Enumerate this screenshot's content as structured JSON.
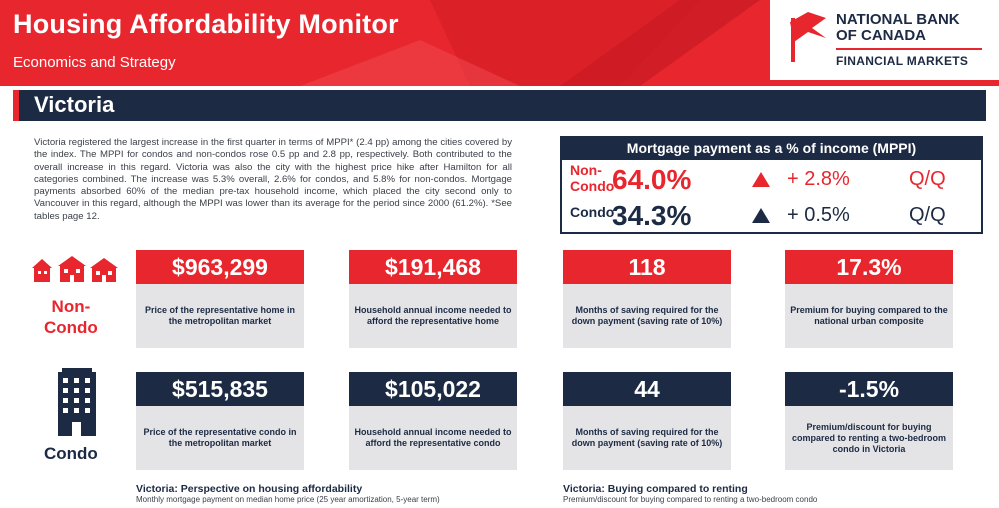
{
  "header": {
    "title": "Housing Affordability Monitor",
    "subtitle": "Economics and Strategy",
    "logo_line1": "NATIONAL BANK",
    "logo_line2": "OF CANADA",
    "logo_line3": "FINANCIAL MARKETS"
  },
  "city": "Victoria",
  "body_text": "Victoria registered the largest increase in the first quarter in terms of MPPI* (2.4 pp) among the cities covered by the index. The MPPI for condos and non-condos rose 0.5 pp and 2.8 pp, respectively. Both contributed to the overall increase in this regard. Victoria was also the city with the highest price hike after Hamilton for all categories combined. The increase was 5.3% overall, 2.6% for condos, and 5.8% for non-condos. Mortgage payments absorbed 60% of the median pre-tax household income, which placed the city second only to Vancouver in this regard, although the MPPI was lower than its average for the period since 2000 (61.2%). *See tables page 12.",
  "mppi": {
    "title": "Mortgage payment as a % of income (MPPI)",
    "rows": [
      {
        "label_line1": "Non-",
        "label_line2": "Condo",
        "value": "64.0%",
        "change": "+ 2.8%",
        "period": "Q/Q",
        "color": "#e8262e"
      },
      {
        "label_line1": "Condo",
        "label_line2": "",
        "value": "34.3%",
        "change": "+ 0.5%",
        "period": "Q/Q",
        "color": "#1c2a44"
      }
    ]
  },
  "non_condo": {
    "label_line1": "Non-",
    "label_line2": "Condo",
    "cards": [
      {
        "value": "$963,299",
        "text": "Price of the representative home in the metropolitan market"
      },
      {
        "value": "$191,468",
        "text": "Household annual income needed to afford the representative home"
      },
      {
        "value": "118",
        "text": "Months of saving required for the down payment (saving rate of 10%)"
      },
      {
        "value": "17.3%",
        "text": "Premium for buying compared to the national urban composite"
      }
    ]
  },
  "condo": {
    "label": "Condo",
    "cards": [
      {
        "value": "$515,835",
        "text": "Price of the representative condo in the metropolitan market"
      },
      {
        "value": "$105,022",
        "text": "Household annual income needed to afford the representative condo"
      },
      {
        "value": "44",
        "text": "Months of saving required for the down payment (saving rate of 10%)"
      },
      {
        "value": "-1.5%",
        "text": "Premium/discount for buying compared to renting a two-bedroom condo in Victoria"
      }
    ]
  },
  "footer": {
    "left_title": "Victoria: Perspective on housing affordability",
    "left_sub": "Monthly mortgage payment on median home price (25 year amortization, 5-year term)",
    "right_title": "Victoria: Buying compared to renting",
    "right_sub": "Premium/discount for buying compared to renting a two-bedroom condo"
  },
  "colors": {
    "red": "#e8262e",
    "navy": "#1c2a44",
    "card_bg": "#e4e4e6"
  }
}
